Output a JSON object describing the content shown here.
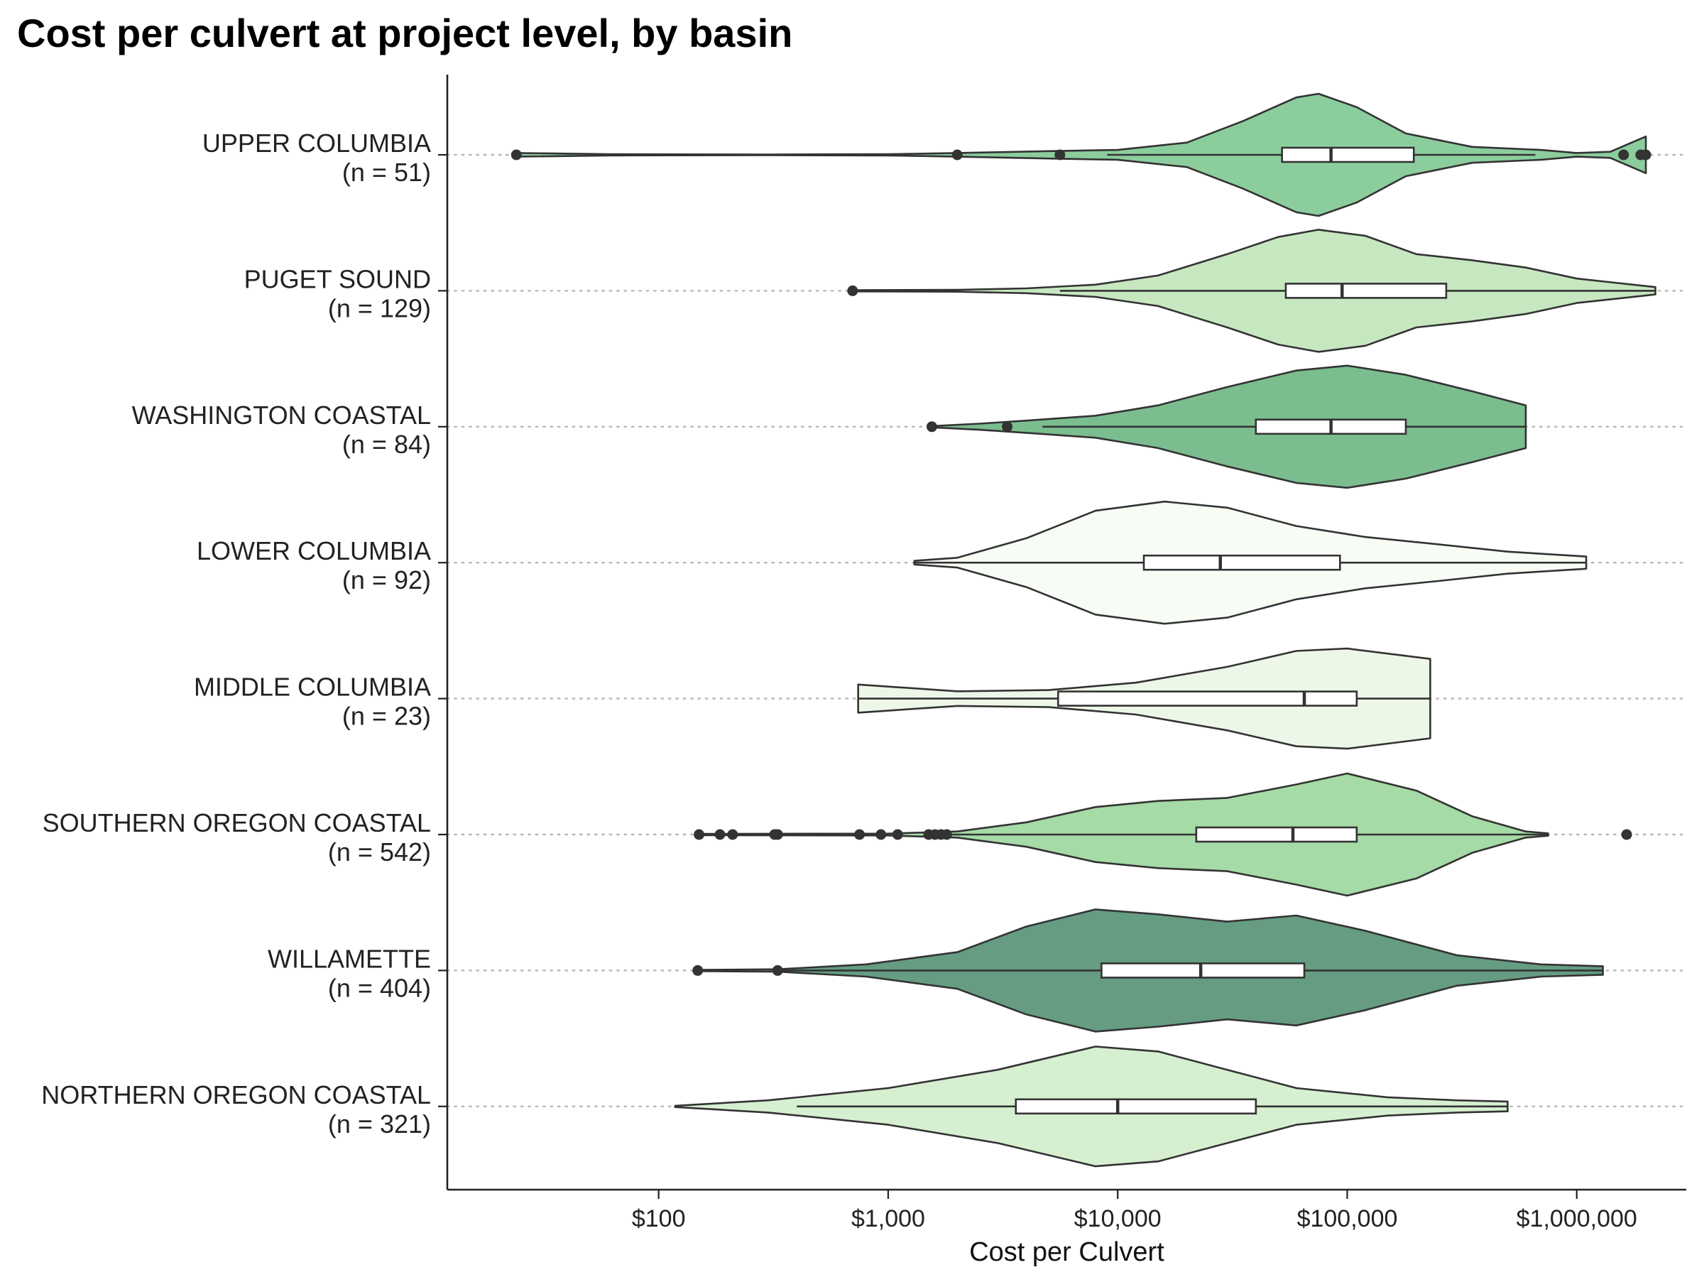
{
  "chart_data": {
    "type": "violin",
    "title": "Cost per culvert at project level, by basin",
    "xlabel": "Cost per Culvert",
    "ylabel": "",
    "x_scale": "log10",
    "xlim": [
      12,
      3000000
    ],
    "x_ticks": [
      {
        "value": 100,
        "label": "$100"
      },
      {
        "value": 1000,
        "label": "$1,000"
      },
      {
        "value": 10000,
        "label": "$10,000"
      },
      {
        "value": 100000,
        "label": "$100,000"
      },
      {
        "value": 1000000,
        "label": "$1,000,000"
      }
    ],
    "grid": "dotted horizontal reference line per basin",
    "legend": "none",
    "categories": [
      {
        "name": "UPPER COLUMBIA",
        "n_label": "(n = 51)",
        "color": "#8ccd9e",
        "box": {
          "q1": 52000,
          "median": 85000,
          "q3": 195000,
          "whisker_low": 9000,
          "whisker_high": 660000
        },
        "outliers": [
          24,
          2000,
          5600,
          1600000,
          1900000,
          2000000
        ],
        "violin": [
          [
            24,
            0.03
          ],
          [
            60,
            0.01
          ],
          [
            300,
            0.006
          ],
          [
            1000,
            0.01
          ],
          [
            2000,
            0.03
          ],
          [
            5000,
            0.06
          ],
          [
            10000,
            0.08
          ],
          [
            20000,
            0.2
          ],
          [
            35000,
            0.55
          ],
          [
            60000,
            0.94
          ],
          [
            75000,
            1.0
          ],
          [
            110000,
            0.78
          ],
          [
            180000,
            0.35
          ],
          [
            350000,
            0.13
          ],
          [
            700000,
            0.08
          ],
          [
            1000000,
            0.03
          ],
          [
            1400000,
            0.05
          ],
          [
            2000000,
            0.3
          ]
        ]
      },
      {
        "name": "PUGET SOUND",
        "n_label": "(n = 129)",
        "color": "#c7e7c0",
        "box": {
          "q1": 54000,
          "median": 95000,
          "q3": 270000,
          "whisker_low": 5600,
          "whisker_high": 2200000
        },
        "outliers": [
          700
        ],
        "violin": [
          [
            700,
            0.01
          ],
          [
            2000,
            0.015
          ],
          [
            4000,
            0.04
          ],
          [
            8000,
            0.1
          ],
          [
            15000,
            0.25
          ],
          [
            30000,
            0.6
          ],
          [
            50000,
            0.88
          ],
          [
            75000,
            1.0
          ],
          [
            120000,
            0.9
          ],
          [
            200000,
            0.6
          ],
          [
            350000,
            0.5
          ],
          [
            600000,
            0.38
          ],
          [
            1000000,
            0.2
          ],
          [
            2200000,
            0.06
          ]
        ]
      },
      {
        "name": "WASHINGTON COASTAL",
        "n_label": "(n = 84)",
        "color": "#7bbd8f",
        "box": {
          "q1": 40000,
          "median": 85000,
          "q3": 180000,
          "whisker_low": 4700,
          "whisker_high": 600000
        },
        "outliers": [
          1550,
          3300
        ],
        "violin": [
          [
            1550,
            0.01
          ],
          [
            2500,
            0.05
          ],
          [
            4000,
            0.1
          ],
          [
            8000,
            0.18
          ],
          [
            15000,
            0.35
          ],
          [
            30000,
            0.65
          ],
          [
            60000,
            0.92
          ],
          [
            100000,
            1.0
          ],
          [
            180000,
            0.85
          ],
          [
            350000,
            0.58
          ],
          [
            600000,
            0.35
          ]
        ]
      },
      {
        "name": "LOWER COLUMBIA",
        "n_label": "(n = 92)",
        "color": "#f7fcf5",
        "box": {
          "q1": 13000,
          "median": 28000,
          "q3": 93000,
          "whisker_low": 1300,
          "whisker_high": 1100000
        },
        "outliers": [],
        "violin": [
          [
            1300,
            0.03
          ],
          [
            2000,
            0.08
          ],
          [
            4000,
            0.4
          ],
          [
            8000,
            0.85
          ],
          [
            16000,
            1.0
          ],
          [
            30000,
            0.9
          ],
          [
            60000,
            0.6
          ],
          [
            120000,
            0.42
          ],
          [
            250000,
            0.3
          ],
          [
            500000,
            0.18
          ],
          [
            1100000,
            0.1
          ]
        ]
      },
      {
        "name": "MIDDLE COLUMBIA",
        "n_label": "(n = 23)",
        "color": "#edf7e8",
        "box": {
          "q1": 5500,
          "median": 65000,
          "q3": 110000,
          "whisker_low": 740,
          "whisker_high": 230000
        },
        "outliers": [],
        "violin": [
          [
            740,
            0.23
          ],
          [
            2000,
            0.12
          ],
          [
            5000,
            0.14
          ],
          [
            12000,
            0.26
          ],
          [
            30000,
            0.52
          ],
          [
            60000,
            0.78
          ],
          [
            100000,
            0.82
          ],
          [
            230000,
            0.65
          ]
        ]
      },
      {
        "name": "SOUTHERN OREGON COASTAL",
        "n_label": "(n = 542)",
        "color": "#a5dba6",
        "box": {
          "q1": 22000,
          "median": 58000,
          "q3": 110000,
          "whisker_low": 1900,
          "whisker_high": 750000
        },
        "outliers": [
          150,
          185,
          210,
          320,
          330,
          750,
          930,
          1100,
          1500,
          1600,
          1700,
          1800,
          1650000
        ],
        "violin": [
          [
            150,
            0.01
          ],
          [
            1000,
            0.015
          ],
          [
            2000,
            0.05
          ],
          [
            4000,
            0.2
          ],
          [
            8000,
            0.45
          ],
          [
            15000,
            0.55
          ],
          [
            30000,
            0.6
          ],
          [
            60000,
            0.82
          ],
          [
            100000,
            1.0
          ],
          [
            200000,
            0.72
          ],
          [
            350000,
            0.3
          ],
          [
            600000,
            0.05
          ],
          [
            750000,
            0.02
          ]
        ]
      },
      {
        "name": "WILLAMETTE",
        "n_label": "(n = 404)",
        "color": "#659c82",
        "box": {
          "q1": 8500,
          "median": 23000,
          "q3": 65000,
          "whisker_low": 330,
          "whisker_high": 1300000
        },
        "outliers": [
          148,
          330
        ],
        "violin": [
          [
            148,
            0.01
          ],
          [
            330,
            0.02
          ],
          [
            800,
            0.1
          ],
          [
            2000,
            0.3
          ],
          [
            4000,
            0.72
          ],
          [
            8000,
            1.0
          ],
          [
            15000,
            0.92
          ],
          [
            30000,
            0.8
          ],
          [
            60000,
            0.9
          ],
          [
            120000,
            0.65
          ],
          [
            300000,
            0.25
          ],
          [
            700000,
            0.1
          ],
          [
            1300000,
            0.07
          ]
        ]
      },
      {
        "name": "NORTHERN OREGON COASTAL",
        "n_label": "(n = 321)",
        "color": "#d6efd0",
        "box": {
          "q1": 3600,
          "median": 10000,
          "q3": 40000,
          "whisker_low": 400,
          "whisker_high": 500000
        },
        "outliers": [],
        "violin": [
          [
            118,
            0.01
          ],
          [
            300,
            0.1
          ],
          [
            1000,
            0.3
          ],
          [
            3000,
            0.6
          ],
          [
            8000,
            0.98
          ],
          [
            15000,
            0.9
          ],
          [
            30000,
            0.6
          ],
          [
            60000,
            0.3
          ],
          [
            150000,
            0.15
          ],
          [
            300000,
            0.1
          ],
          [
            500000,
            0.08
          ]
        ]
      }
    ]
  }
}
